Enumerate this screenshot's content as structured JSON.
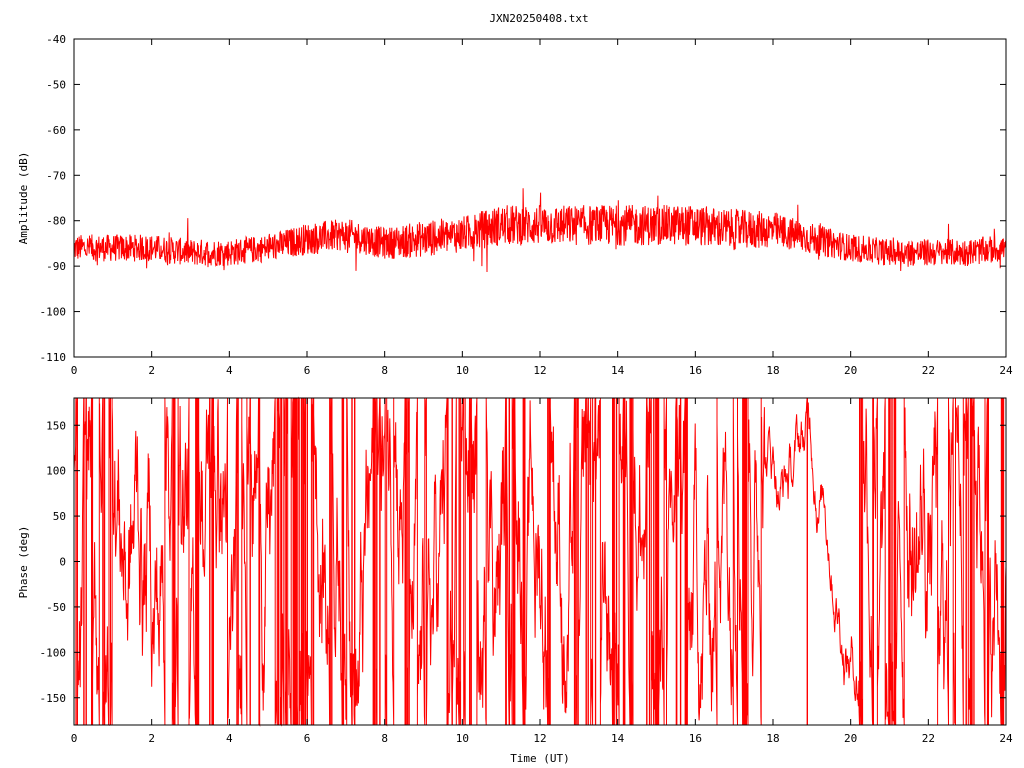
{
  "title": "JXN20250408.txt",
  "colors": {
    "series": "#ff0000",
    "axis": "#000000",
    "background": "#ffffff"
  },
  "chart_data": [
    {
      "type": "line",
      "title": "JXN20250408.txt",
      "xlabel": "",
      "ylabel": "Amplitude (dB)",
      "xlim": [
        0,
        24
      ],
      "ylim": [
        -110,
        -40
      ],
      "xticks": [
        "0",
        "2",
        "4",
        "6",
        "8",
        "10",
        "12",
        "14",
        "16",
        "18",
        "20",
        "22",
        "24"
      ],
      "yticks": [
        "-40",
        "-50",
        "-60",
        "-70",
        "-80",
        "-90",
        "-100",
        "-110"
      ],
      "grid": false,
      "series": [
        {
          "color": "#ff0000",
          "envelope": {
            "x": [
              0,
              1,
              2,
              3,
              4,
              5,
              6,
              7,
              8,
              9,
              10,
              11,
              12,
              13,
              14,
              15,
              16,
              17,
              18,
              19,
              20,
              21,
              22,
              23,
              24
            ],
            "center": [
              -86,
              -86,
              -86,
              -87,
              -87,
              -86,
              -84,
              -83,
              -85,
              -84,
              -83,
              -81,
              -81,
              -81,
              -81,
              -81,
              -81,
              -82,
              -82,
              -84,
              -86,
              -87,
              -87,
              -87,
              -86
            ],
            "spread": [
              3,
              3,
              3,
              3,
              3,
              3,
              3.5,
              3.5,
              3.5,
              4,
              4,
              4.5,
              4.5,
              4.5,
              4.5,
              4.5,
              4.5,
              4.5,
              4,
              3.5,
              3,
              3,
              3,
              3,
              3
            ]
          }
        }
      ]
    },
    {
      "type": "line",
      "title": "",
      "xlabel": "Time (UT)",
      "ylabel": "Phase (deg)",
      "xlim": [
        0,
        24
      ],
      "ylim": [
        -180,
        180
      ],
      "xticks": [
        "0",
        "2",
        "4",
        "6",
        "8",
        "10",
        "12",
        "14",
        "16",
        "18",
        "20",
        "22",
        "24"
      ],
      "yticks": [
        "150",
        "100",
        "50",
        "0",
        "-50",
        "-100",
        "-150"
      ],
      "grid": false,
      "series": [
        {
          "color": "#ff0000",
          "phase_wrap": [
            -180,
            180
          ]
        }
      ]
    }
  ]
}
